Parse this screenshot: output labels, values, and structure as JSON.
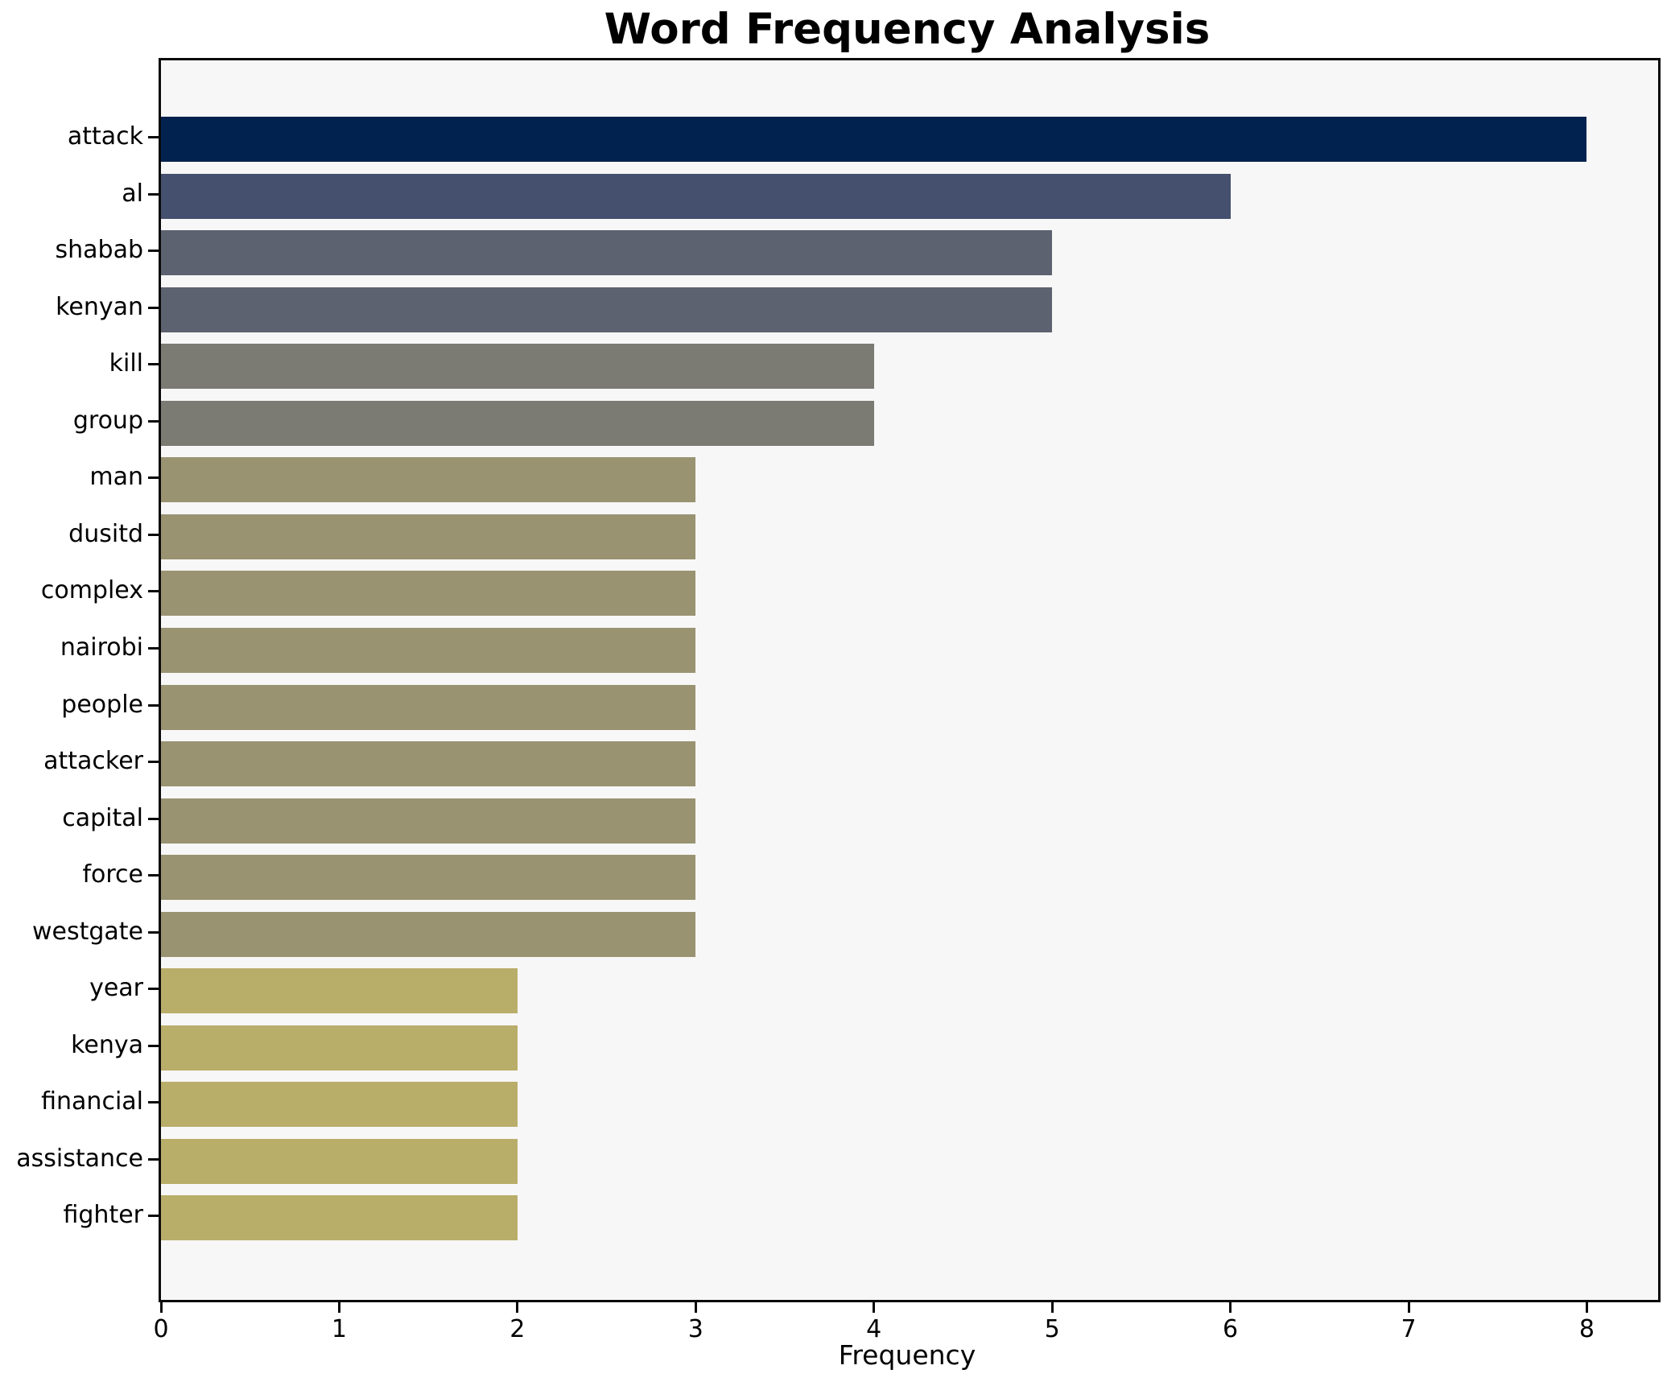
{
  "title": "Word Frequency Analysis",
  "chart_data": {
    "type": "bar",
    "orientation": "horizontal",
    "title": "Word Frequency Analysis",
    "xlabel": "Frequency",
    "ylabel": "",
    "categories": [
      "attack",
      "al",
      "shabab",
      "kenyan",
      "kill",
      "group",
      "man",
      "dusitd",
      "complex",
      "nairobi",
      "people",
      "attacker",
      "capital",
      "force",
      "westgate",
      "year",
      "kenya",
      "financial",
      "assistance",
      "fighter"
    ],
    "values": [
      8,
      6,
      5,
      5,
      4,
      4,
      3,
      3,
      3,
      3,
      3,
      3,
      3,
      3,
      3,
      2,
      2,
      2,
      2,
      2
    ],
    "bar_colors": [
      "#01224e",
      "#45506f",
      "#5d6270",
      "#5d6270",
      "#7b7a73",
      "#7b7a73",
      "#9a9372",
      "#9a9372",
      "#9a9372",
      "#9a9372",
      "#9a9372",
      "#9a9372",
      "#9a9372",
      "#9a9372",
      "#9a9372",
      "#b9ad6a",
      "#b9ad6a",
      "#b9ad6a",
      "#b9ad6a",
      "#b9ad6a"
    ],
    "xlim": [
      0,
      8.4
    ],
    "x_ticks": [
      0,
      1,
      2,
      3,
      4,
      5,
      6,
      7,
      8
    ],
    "grid": false,
    "legend": null,
    "plot_background": "#f7f7f7",
    "figure_background": "#ffffff",
    "spine_color": "#0a0a0a"
  }
}
